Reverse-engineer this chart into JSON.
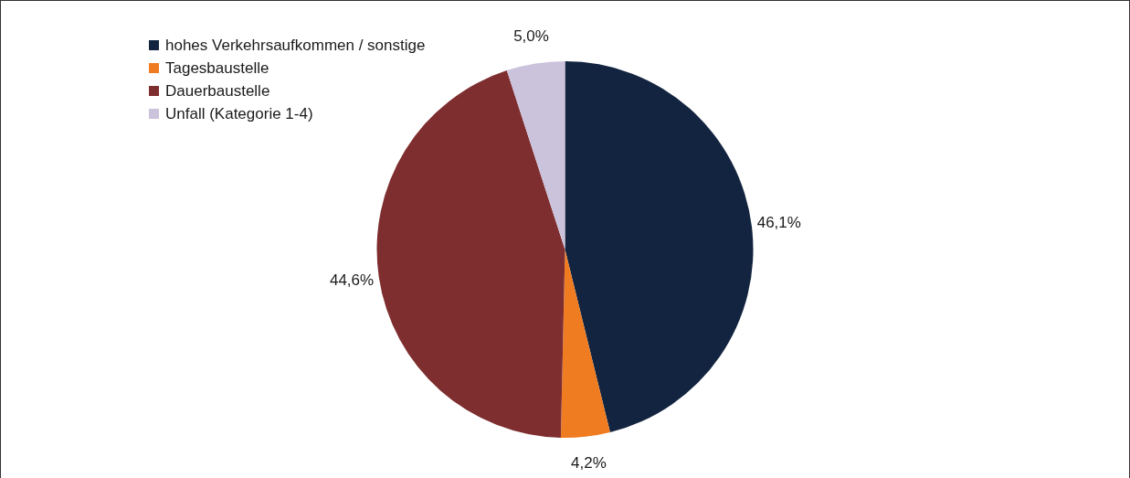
{
  "chart_data": {
    "type": "pie",
    "categories": [
      "hohes Verkehrsaufkommen / sonstige",
      "Tagesbaustelle",
      "Dauerbaustelle",
      "Unfall (Kategorie 1-4)"
    ],
    "values": [
      46.1,
      4.2,
      44.6,
      5.0
    ],
    "colors": [
      "#12243f",
      "#f07c22",
      "#7f2e2f",
      "#cbc2db"
    ],
    "value_labels": [
      "46,1%",
      "4,2%",
      "44,6%",
      "5,0%"
    ],
    "legend": "top left"
  }
}
